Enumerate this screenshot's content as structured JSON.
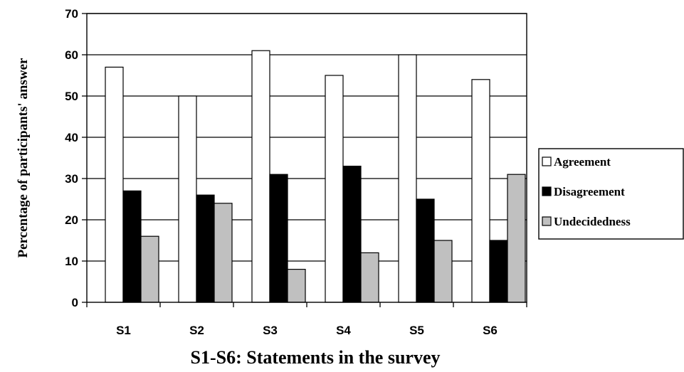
{
  "chart_data": {
    "type": "bar",
    "categories": [
      "S1",
      "S2",
      "S3",
      "S4",
      "S5",
      "S6"
    ],
    "series": [
      {
        "name": "Agreement",
        "values": [
          57,
          50,
          61,
          55,
          60,
          54
        ],
        "color": "#ffffff"
      },
      {
        "name": "Disagreement",
        "values": [
          27,
          26,
          31,
          33,
          25,
          15
        ],
        "color": "#000000"
      },
      {
        "name": "Undecidedness",
        "values": [
          16,
          24,
          8,
          12,
          15,
          31
        ],
        "color": "#c0c0c0"
      }
    ],
    "xlabel": "S1-S6: Statements in the survey",
    "ylabel": "Percentage of participants' answer",
    "ylim": [
      0,
      70
    ],
    "yticks": [
      0,
      10,
      20,
      30,
      40,
      50,
      60,
      70
    ],
    "grid": true,
    "legend_position": "right"
  }
}
